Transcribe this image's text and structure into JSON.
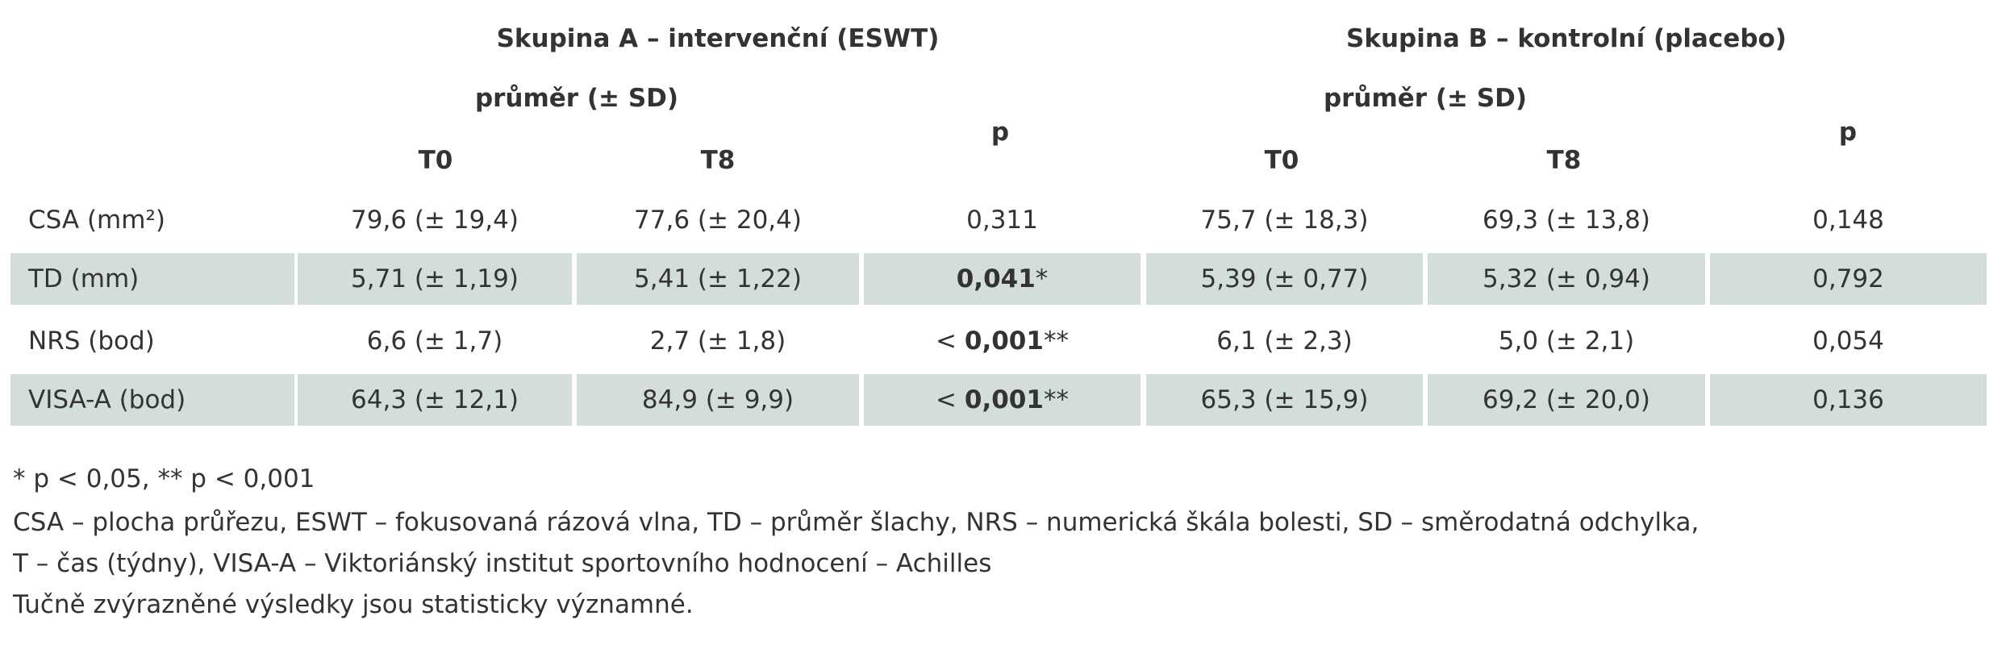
{
  "table": {
    "group_headers": [
      "Skupina A – intervenční (ESWT)",
      "Skupina B – kontrolní (placebo)"
    ],
    "sub_headers": [
      "průměr (± SD)",
      "průměr (± SD)"
    ],
    "p_headers": [
      "p",
      "p"
    ],
    "time_headers": [
      "T0",
      "T8",
      "T0",
      "T8"
    ],
    "rows": [
      [
        "CSA (mm²)",
        "79,6 (± 19,4)",
        "77,6 (± 20,4)",
        "0,311",
        "75,7 (± 18,3)",
        "69,3 (± 13,8)",
        "0,148"
      ],
      [
        "TD (mm)",
        "5,71 (± 1,19)",
        "5,41 (± 1,22)",
        {
          "bold": "0,041",
          "suffix": "*"
        },
        "5,39 (± 0,77)",
        "5,32 (± 0,94)",
        "0,792"
      ],
      [
        "NRS (bod)",
        "6,6 (± 1,7)",
        "2,7 (± 1,8)",
        {
          "prefix": "<",
          "bold": "0,001",
          "suffix": "**"
        },
        "6,1 (± 2,3)",
        "5,0 (± 2,1)",
        "0,054"
      ],
      [
        "VISA-A (bod)",
        "64,3 (± 12,1)",
        "84,9 (± 9,9)",
        {
          "prefix": "<",
          "bold": "0,001",
          "suffix": "**"
        },
        "65,3 (± 15,9)",
        "69,2 (± 20,0)",
        "0,136"
      ]
    ]
  },
  "footnotes": [
    "* p < 0,05, ** p < 0,001",
    "CSA – plocha průřezu, ESWT – fokusovaná rázová vlna, TD – průměr šlachy, NRS – numerická škála bolesti, SD – směrodatná odchylka,",
    "T – čas (týdny), VISA-A – Viktoriánský institut sportovního hodnocení – Achilles",
    "Tučně zvýrazněné výsledky jsou statisticky významné."
  ]
}
